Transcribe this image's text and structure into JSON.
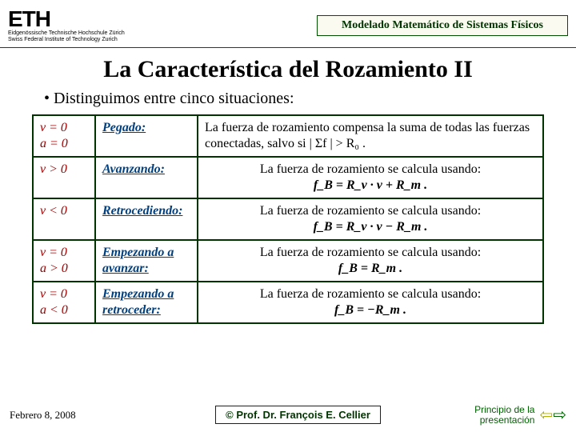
{
  "header": {
    "logo_main": "ETH",
    "logo_sub1": "Eidgenössische Technische Hochschule Zürich",
    "logo_sub2": "Swiss Federal Institute of Technology Zurich",
    "course_title": "Modelado Matemático de Sistemas Físicos"
  },
  "title": "La Característica del Rozamiento II",
  "bullet": "• Distinguimos entre cinco situaciones:",
  "rows": [
    {
      "cond_l1": "v = 0",
      "cond_l2": "a = 0",
      "state": "Pegado:",
      "desc": "La fuerza de rozamiento compensa la suma de todas las fuerzas conectadas, salvo si | Σf | > R₀ ."
    },
    {
      "cond_l1": "v > 0",
      "cond_l2": "",
      "state": "Avanzando:",
      "desc_l1": "La fuerza de rozamiento se calcula usando:",
      "desc_l2": "f_B = R_v · v + R_m ."
    },
    {
      "cond_l1": "v < 0",
      "cond_l2": "",
      "state": "Retrocediendo:",
      "desc_l1": "La fuerza de rozamiento se calcula usando:",
      "desc_l2": "f_B = R_v · v − R_m ."
    },
    {
      "cond_l1": "v = 0",
      "cond_l2": "a > 0",
      "state": "Empezando a avanzar:",
      "desc_l1": "La fuerza de rozamiento se calcula usando:",
      "desc_l2": "f_B = R_m ."
    },
    {
      "cond_l1": "v = 0",
      "cond_l2": "a < 0",
      "state": "Empezando a retroceder:",
      "desc_l1": "La fuerza de rozamiento se calcula usando:",
      "desc_l2": "f_B =  −R_m ."
    }
  ],
  "footer": {
    "date": "Febrero 8, 2008",
    "author": "©  Prof. Dr. François E. Cellier",
    "nav_l1": "Principio de la",
    "nav_l2": "presentación"
  },
  "colors": {
    "border_green": "#003300",
    "cond_red": "#a00000",
    "state_blue": "#004080",
    "link_green": "#006000",
    "arrow_yellow": "#b0b000"
  }
}
